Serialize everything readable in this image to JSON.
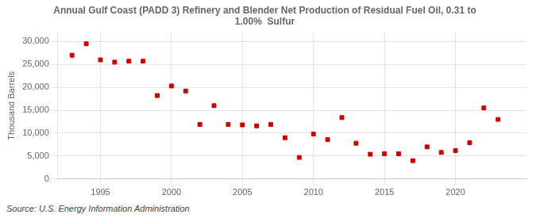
{
  "chart_data": {
    "type": "scatter",
    "title": "Annual Gulf Coast (PADD 3) Refinery and Blender Net Production of Residual Fuel Oil, 0.31 to\n1.00%  Sulfur",
    "y_label": "Thousand Barrels",
    "annotations": [
      "Source: U.S. Energy Information Administration"
    ],
    "x": [
      1993,
      1994,
      1995,
      1996,
      1997,
      1998,
      1999,
      2000,
      2001,
      2002,
      2003,
      2004,
      2005,
      2006,
      2007,
      2008,
      2009,
      2010,
      2011,
      2012,
      2013,
      2014,
      2015,
      2016,
      2017,
      2018,
      2019,
      2020,
      2021,
      2022,
      2023
    ],
    "values": [
      27000,
      29500,
      26000,
      25500,
      25700,
      25700,
      18200,
      20300,
      19200,
      11900,
      16000,
      11900,
      11800,
      11600,
      11900,
      9000,
      4700,
      9800,
      8600,
      13400,
      7800,
      5400,
      5500,
      5500,
      4000,
      7000,
      5800,
      6200,
      7900,
      15500,
      13000
    ],
    "color": "#cc0000",
    "marker": "square",
    "xlim": [
      1992,
      2025
    ],
    "xticks": [
      1995,
      2000,
      2005,
      2010,
      2015,
      2020
    ],
    "ylim": [
      0,
      32000
    ],
    "yticks": [
      0,
      {
        "value": 5000,
        "label": "5,000"
      },
      {
        "value": 10000,
        "label": "10,000"
      },
      {
        "value": 15000,
        "label": "15,000"
      },
      {
        "value": 20000,
        "label": "20,000"
      },
      {
        "value": 25000,
        "label": "25,000"
      },
      {
        "value": 30000,
        "label": "30,000"
      }
    ],
    "grid": true
  }
}
